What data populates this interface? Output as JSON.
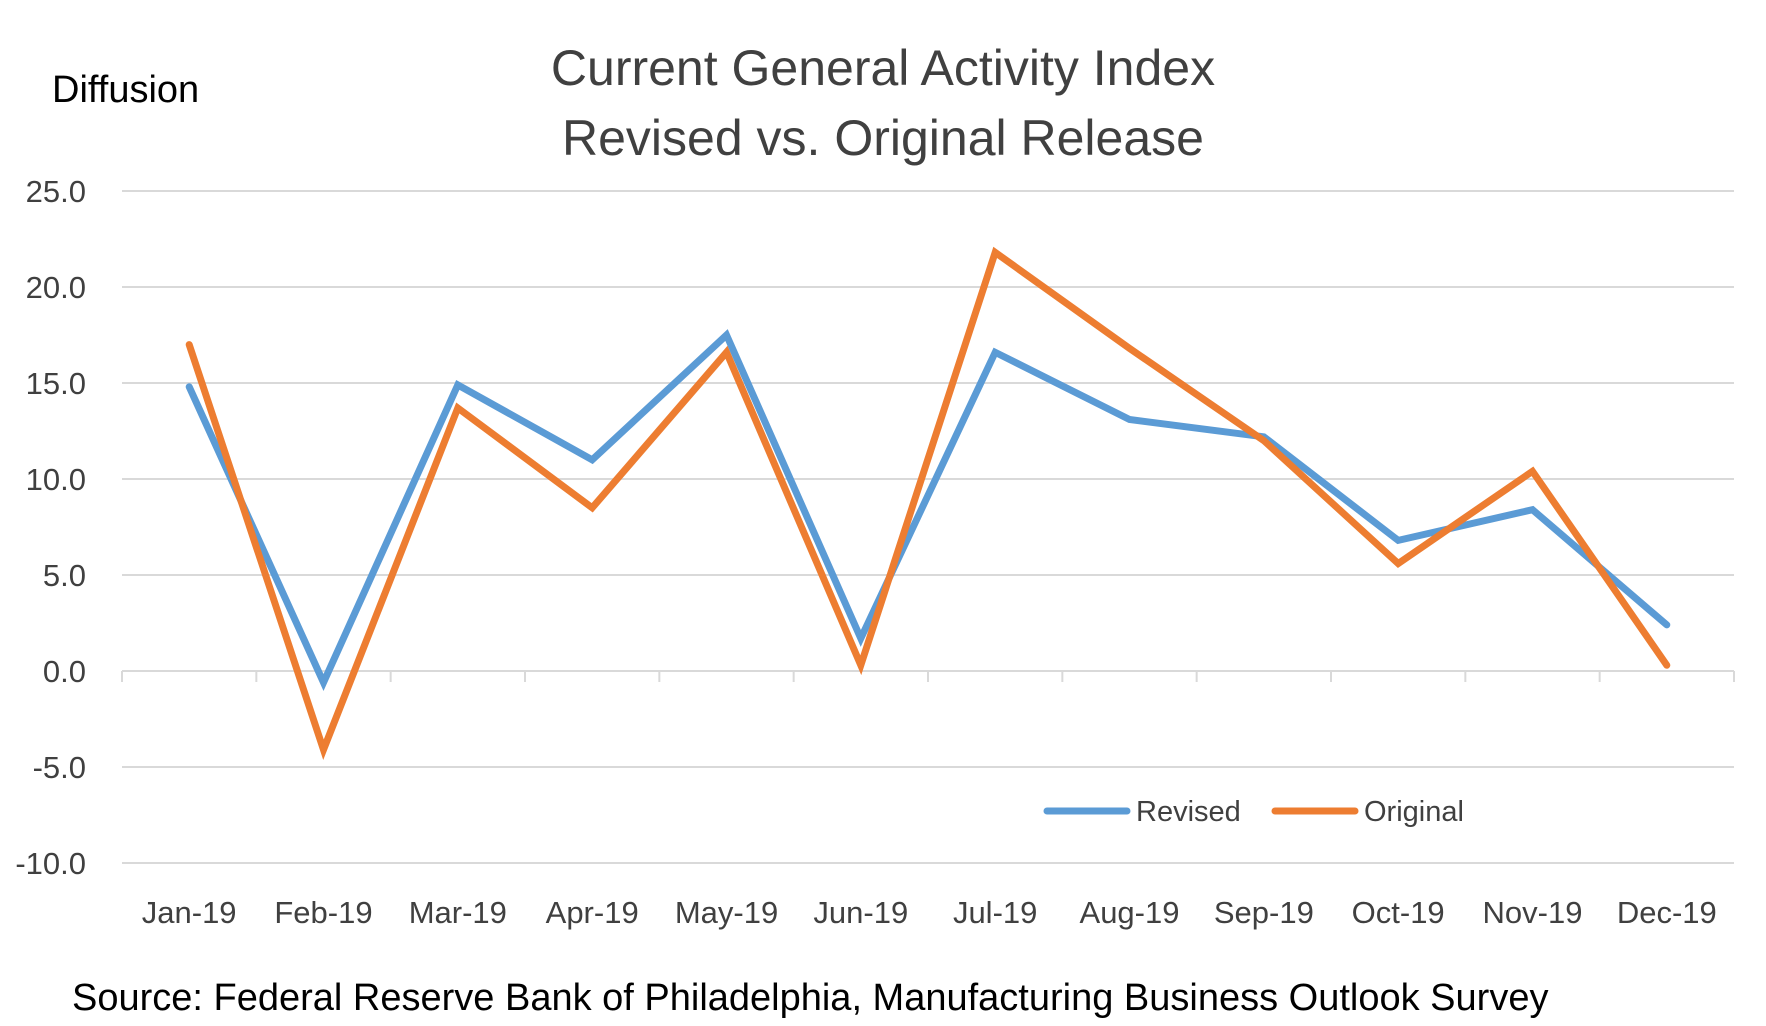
{
  "chart_data": {
    "type": "line",
    "title": "Current General Activity Index",
    "subtitle": "Revised vs. Original Release",
    "ylabel": "Diffusion",
    "source": "Source: Federal Reserve Bank of Philadelphia, Manufacturing Business Outlook Survey",
    "categories": [
      "Jan-19",
      "Feb-19",
      "Mar-19",
      "Apr-19",
      "May-19",
      "Jun-19",
      "Jul-19",
      "Aug-19",
      "Sep-19",
      "Oct-19",
      "Nov-19",
      "Dec-19"
    ],
    "ylim": [
      -10,
      25
    ],
    "yticks": [
      "25.0",
      "20.0",
      "15.0",
      "10.0",
      "5.0",
      "0.0",
      "-5.0",
      "-10.0"
    ],
    "grid": true,
    "legend_position": "bottom-right",
    "series": [
      {
        "name": "Revised",
        "color": "#5b9bd5",
        "values": [
          14.8,
          -0.6,
          14.9,
          11.0,
          17.5,
          1.7,
          16.6,
          13.1,
          12.2,
          6.8,
          8.4,
          2.4
        ]
      },
      {
        "name": "Original",
        "color": "#ed7d31",
        "values": [
          17.0,
          -4.1,
          13.7,
          8.5,
          16.6,
          0.3,
          21.8,
          16.8,
          12.0,
          5.6,
          10.4,
          0.3
        ]
      }
    ]
  }
}
